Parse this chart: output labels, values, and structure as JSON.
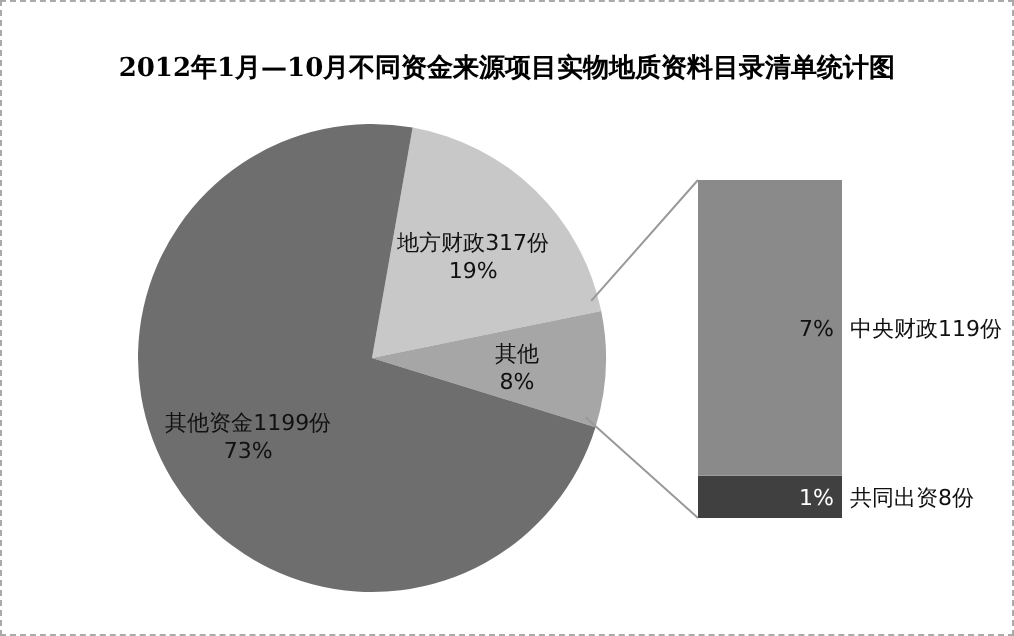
{
  "chart_data": [
    {
      "type": "pie",
      "title": "2012年1月—10月不同资金来源项目实物地质资料目录清单统计图",
      "categories": [
        "地方财政317份",
        "其他",
        "其他资金1199份"
      ],
      "values": [
        19,
        8,
        73
      ],
      "colors": [
        "#c8c8c8",
        "#a6a6a6",
        "#6e6e6e"
      ],
      "value_labels": [
        "19%",
        "8%",
        "73%"
      ]
    },
    {
      "type": "bar",
      "stacked": true,
      "categories": [
        null
      ],
      "series": [
        {
          "name": "共同出资8份",
          "color": "#404040",
          "values": [
            1
          ],
          "value_labels": [
            "1%"
          ]
        },
        {
          "name": "中央财政119份",
          "color": "#8a8a8a",
          "values": [
            7
          ],
          "value_labels": [
            "7%"
          ]
        }
      ]
    }
  ]
}
